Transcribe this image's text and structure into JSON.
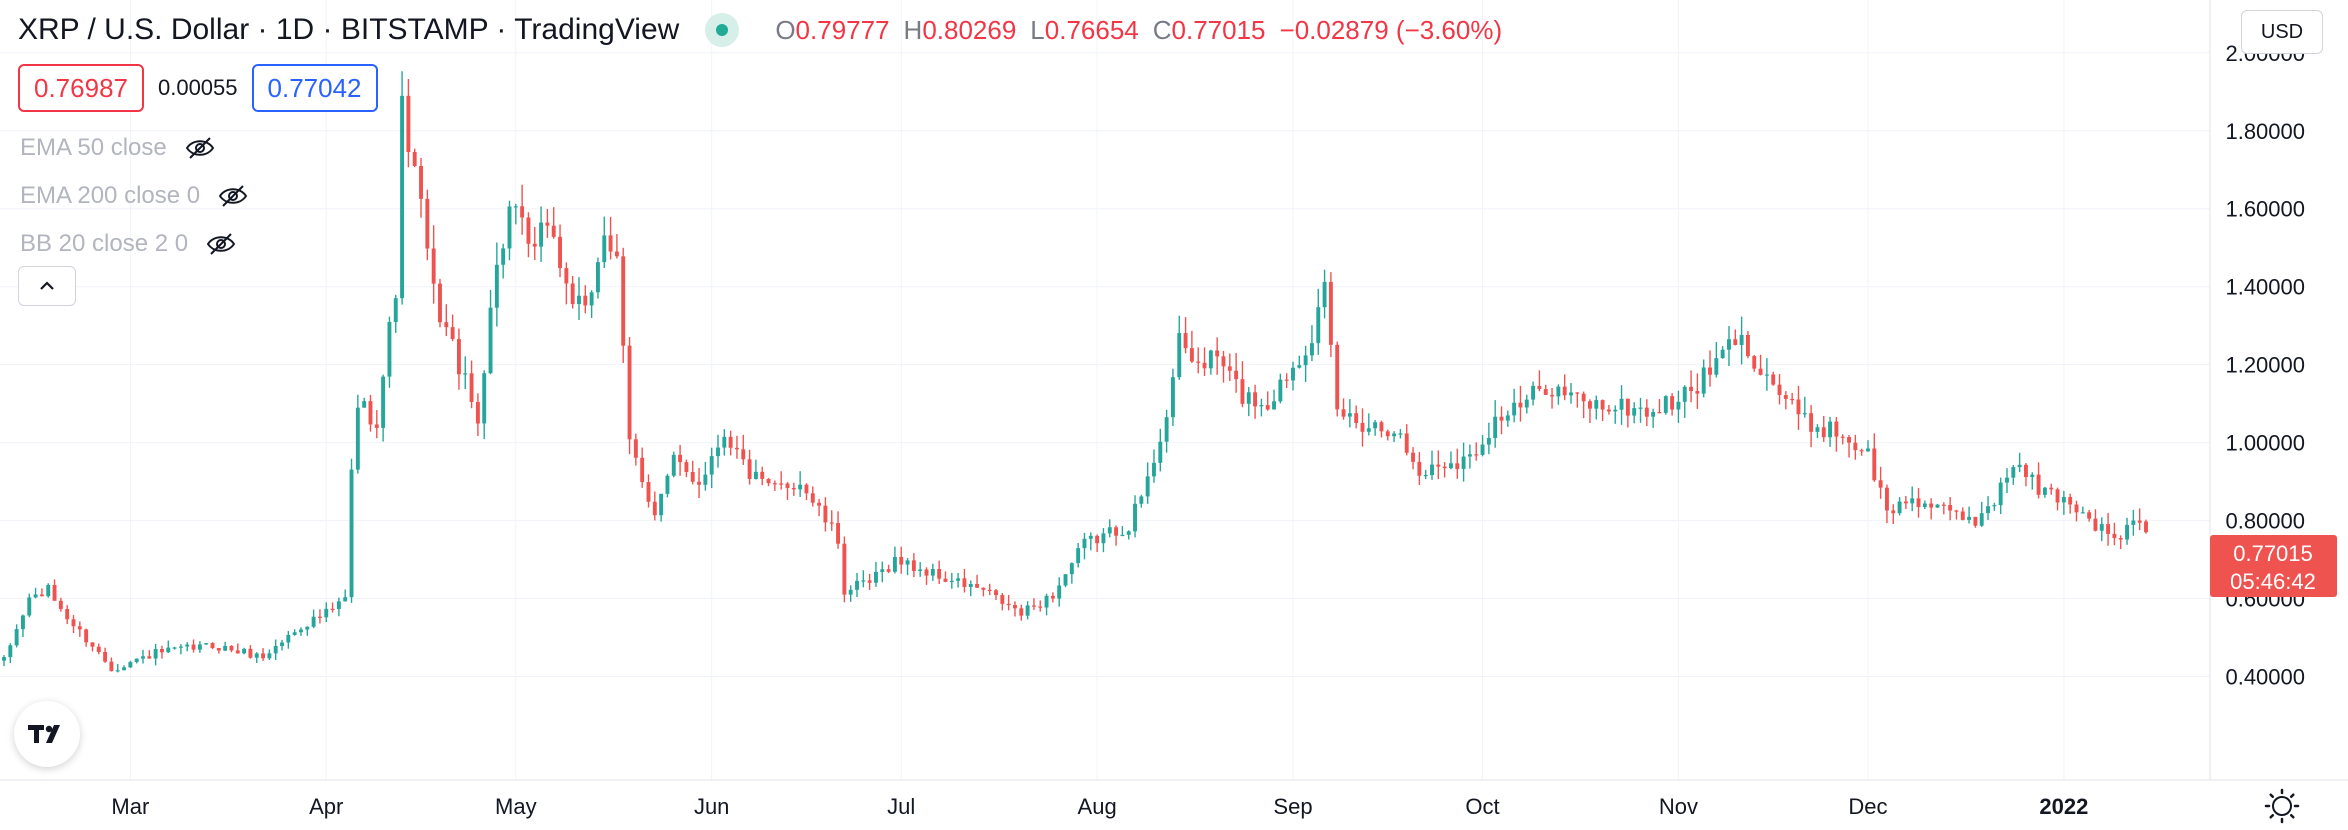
{
  "header": {
    "symbol_title": "XRP / U.S. Dollar · 1D · BITSTAMP · TradingView",
    "ohlc": {
      "open_label": "O",
      "open": "0.79777",
      "high_label": "H",
      "high": "0.80269",
      "low_label": "L",
      "low": "0.76654",
      "close_label": "C",
      "close": "0.77015",
      "change": "−0.02879 (−3.60%)"
    }
  },
  "trade": {
    "bid": "0.76987",
    "spread": "0.00055",
    "ask": "0.77042"
  },
  "indicators": [
    {
      "label": "EMA 50 close",
      "visible_icon": "eye-off-icon"
    },
    {
      "label": "EMA 200 close 0",
      "visible_icon": "eye-off-icon"
    },
    {
      "label": "BB 20 close 2 0",
      "visible_icon": "eye-off-icon"
    }
  ],
  "currency_selector": "USD",
  "last_price": {
    "value": "0.77015",
    "countdown": "05:46:42"
  },
  "colors": {
    "up": "#26a69a",
    "down": "#ef5350",
    "grid": "#f0f3fa",
    "axis_text": "#131722",
    "accent_blue": "#2962ff",
    "price_label_bg": "#ef5350"
  },
  "chart_data": {
    "type": "candlestick",
    "title": "XRP / U.S. Dollar",
    "interval": "1D",
    "exchange": "BITSTAMP",
    "y_ticks": [
      "0.40000",
      "0.60000",
      "0.80000",
      "1.00000",
      "1.20000",
      "1.40000",
      "1.60000",
      "1.80000",
      "2.00000"
    ],
    "ylim": [
      0.25,
      2.02
    ],
    "x_ticks": [
      "Mar",
      "Apr",
      "May",
      "Jun",
      "Jul",
      "Aug",
      "Sep",
      "Oct",
      "Nov",
      "Dec",
      "2022"
    ],
    "x_range": [
      "2021-02-09",
      "2022-01-14"
    ],
    "anchors": [
      {
        "date": "2021-02-09",
        "price": 0.44
      },
      {
        "date": "2021-02-13",
        "price": 0.6
      },
      {
        "date": "2021-02-16",
        "price": 0.62
      },
      {
        "date": "2021-02-20",
        "price": 0.53
      },
      {
        "date": "2021-02-23",
        "price": 0.48
      },
      {
        "date": "2021-02-26",
        "price": 0.42
      },
      {
        "date": "2021-03-05",
        "price": 0.46
      },
      {
        "date": "2021-03-14",
        "price": 0.48
      },
      {
        "date": "2021-03-22",
        "price": 0.45
      },
      {
        "date": "2021-03-28",
        "price": 0.53
      },
      {
        "date": "2021-04-02",
        "price": 0.57
      },
      {
        "date": "2021-04-04",
        "price": 0.6
      },
      {
        "date": "2021-04-05",
        "price": 0.92
      },
      {
        "date": "2021-04-06",
        "price": 1.1
      },
      {
        "date": "2021-04-09",
        "price": 1.06
      },
      {
        "date": "2021-04-12",
        "price": 1.4
      },
      {
        "date": "2021-04-13",
        "price": 1.85
      },
      {
        "date": "2021-04-16",
        "price": 1.6
      },
      {
        "date": "2021-04-18",
        "price": 1.38
      },
      {
        "date": "2021-04-22",
        "price": 1.2
      },
      {
        "date": "2021-04-25",
        "price": 1.05
      },
      {
        "date": "2021-04-27",
        "price": 1.36
      },
      {
        "date": "2021-04-30",
        "price": 1.6
      },
      {
        "date": "2021-05-04",
        "price": 1.48
      },
      {
        "date": "2021-05-06",
        "price": 1.58
      },
      {
        "date": "2021-05-09",
        "price": 1.4
      },
      {
        "date": "2021-05-12",
        "price": 1.32
      },
      {
        "date": "2021-05-15",
        "price": 1.55
      },
      {
        "date": "2021-05-17",
        "price": 1.45
      },
      {
        "date": "2021-05-19",
        "price": 1.0
      },
      {
        "date": "2021-05-23",
        "price": 0.82
      },
      {
        "date": "2021-05-26",
        "price": 0.95
      },
      {
        "date": "2021-05-30",
        "price": 0.9
      },
      {
        "date": "2021-06-03",
        "price": 1.03
      },
      {
        "date": "2021-06-07",
        "price": 0.92
      },
      {
        "date": "2021-06-10",
        "price": 0.88
      },
      {
        "date": "2021-06-15",
        "price": 0.9
      },
      {
        "date": "2021-06-21",
        "price": 0.75
      },
      {
        "date": "2021-06-22",
        "price": 0.62
      },
      {
        "date": "2021-06-26",
        "price": 0.64
      },
      {
        "date": "2021-06-30",
        "price": 0.7
      },
      {
        "date": "2021-07-08",
        "price": 0.65
      },
      {
        "date": "2021-07-14",
        "price": 0.62
      },
      {
        "date": "2021-07-20",
        "price": 0.56
      },
      {
        "date": "2021-07-25",
        "price": 0.61
      },
      {
        "date": "2021-07-30",
        "price": 0.74
      },
      {
        "date": "2021-08-06",
        "price": 0.79
      },
      {
        "date": "2021-08-09",
        "price": 0.9
      },
      {
        "date": "2021-08-12",
        "price": 1.08
      },
      {
        "date": "2021-08-14",
        "price": 1.25
      },
      {
        "date": "2021-08-17",
        "price": 1.2
      },
      {
        "date": "2021-08-20",
        "price": 1.22
      },
      {
        "date": "2021-08-24",
        "price": 1.12
      },
      {
        "date": "2021-08-28",
        "price": 1.1
      },
      {
        "date": "2021-09-01",
        "price": 1.2
      },
      {
        "date": "2021-09-04",
        "price": 1.28
      },
      {
        "date": "2021-09-06",
        "price": 1.38
      },
      {
        "date": "2021-09-08",
        "price": 1.08
      },
      {
        "date": "2021-09-12",
        "price": 1.05
      },
      {
        "date": "2021-09-17",
        "price": 1.04
      },
      {
        "date": "2021-09-21",
        "price": 0.92
      },
      {
        "date": "2021-09-25",
        "price": 0.95
      },
      {
        "date": "2021-09-29",
        "price": 0.96
      },
      {
        "date": "2021-10-03",
        "price": 1.06
      },
      {
        "date": "2021-10-07",
        "price": 1.09
      },
      {
        "date": "2021-10-11",
        "price": 1.15
      },
      {
        "date": "2021-10-17",
        "price": 1.1
      },
      {
        "date": "2021-10-23",
        "price": 1.09
      },
      {
        "date": "2021-10-28",
        "price": 1.08
      },
      {
        "date": "2021-11-02",
        "price": 1.12
      },
      {
        "date": "2021-11-06",
        "price": 1.18
      },
      {
        "date": "2021-11-10",
        "price": 1.27
      },
      {
        "date": "2021-11-13",
        "price": 1.22
      },
      {
        "date": "2021-11-17",
        "price": 1.13
      },
      {
        "date": "2021-11-21",
        "price": 1.05
      },
      {
        "date": "2021-11-26",
        "price": 1.03
      },
      {
        "date": "2021-12-01",
        "price": 0.97
      },
      {
        "date": "2021-12-04",
        "price": 0.82
      },
      {
        "date": "2021-12-08",
        "price": 0.86
      },
      {
        "date": "2021-12-13",
        "price": 0.82
      },
      {
        "date": "2021-12-18",
        "price": 0.8
      },
      {
        "date": "2021-12-22",
        "price": 0.88
      },
      {
        "date": "2021-12-24",
        "price": 0.95
      },
      {
        "date": "2021-12-28",
        "price": 0.88
      },
      {
        "date": "2022-01-02",
        "price": 0.85
      },
      {
        "date": "2022-01-06",
        "price": 0.79
      },
      {
        "date": "2022-01-09",
        "price": 0.75
      },
      {
        "date": "2022-01-12",
        "price": 0.79
      },
      {
        "date": "2022-01-14",
        "price": 0.77
      }
    ],
    "last_candle": {
      "open": 0.79777,
      "high": 0.80269,
      "low": 0.76654,
      "close": 0.77015
    },
    "grid": true,
    "legend": "none"
  }
}
